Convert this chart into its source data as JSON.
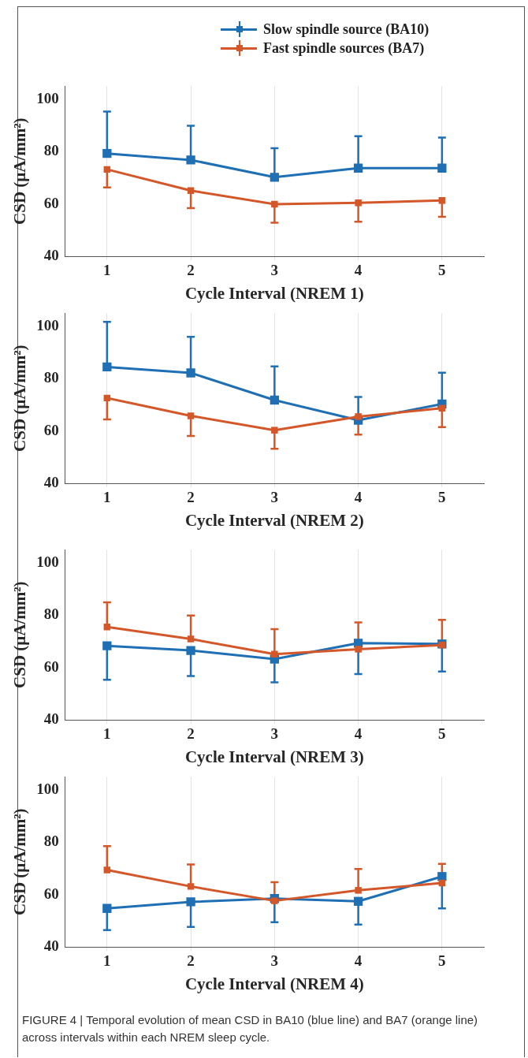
{
  "chart_data": [
    {
      "type": "line",
      "x": [
        1,
        2,
        3,
        4,
        5
      ],
      "xlim": [
        0.5,
        5.5
      ],
      "xticks": [
        1,
        2,
        3,
        4,
        5
      ],
      "ylim": [
        40,
        105
      ],
      "yticks": [
        40,
        60,
        80,
        100
      ],
      "xlabel": "Cycle Interval (NREM 1)",
      "ylabel": "CSD (μA/mm²)",
      "grid": "x",
      "marker": "square",
      "line_style": "solid",
      "legend": "top right",
      "series": [
        {
          "name": "Slow spindle source (BA10)",
          "color": "#1f6fb4",
          "values": [
            79.3,
            76.8,
            70.2,
            73.7,
            73.7
          ],
          "errors": [
            [
              79.3,
              95.3
            ],
            [
              76.8,
              89.9
            ],
            [
              70.2,
              81.3
            ],
            [
              73.7,
              85.9
            ],
            [
              73.7,
              85.4
            ]
          ]
        },
        {
          "name": "Fast spindle sources (BA7)",
          "color": "#d4572a",
          "values": [
            73.2,
            65.1,
            59.9,
            60.4,
            61.3
          ],
          "errors": [
            [
              66.3,
              73.2
            ],
            [
              58.4,
              65.1
            ],
            [
              52.8,
              59.9
            ],
            [
              53.2,
              60.4
            ],
            [
              55.1,
              61.3
            ]
          ]
        }
      ]
    },
    {
      "type": "line",
      "x": [
        1,
        2,
        3,
        4,
        5
      ],
      "xlim": [
        0.5,
        5.5
      ],
      "xticks": [
        1,
        2,
        3,
        4,
        5
      ],
      "ylim": [
        40,
        105
      ],
      "yticks": [
        40,
        60,
        80,
        100
      ],
      "xlabel": "Cycle Interval (NREM 2)",
      "ylabel": "CSD (μA/mm²)",
      "grid": "x",
      "marker": "square",
      "line_style": "solid",
      "series": [
        {
          "color": "#1f6fb4",
          "values": [
            84.5,
            82.2,
            71.8,
            64.1,
            70.3
          ],
          "errors": [
            [
              84.5,
              101.7
            ],
            [
              82.2,
              96.0
            ],
            [
              71.8,
              84.7
            ],
            [
              64.1,
              73.0
            ],
            [
              70.3,
              82.3
            ]
          ]
        },
        {
          "color": "#d4572a",
          "values": [
            72.6,
            65.8,
            60.3,
            65.5,
            68.7
          ],
          "errors": [
            [
              64.4,
              72.6
            ],
            [
              58.1,
              65.8
            ],
            [
              53.2,
              60.3
            ],
            [
              58.6,
              65.5
            ],
            [
              61.5,
              68.7
            ]
          ]
        }
      ]
    },
    {
      "type": "line",
      "x": [
        1,
        2,
        3,
        4,
        5
      ],
      "xlim": [
        0.5,
        5.5
      ],
      "xticks": [
        1,
        2,
        3,
        4,
        5
      ],
      "ylim": [
        40,
        105
      ],
      "yticks": [
        40,
        60,
        80,
        100
      ],
      "xlabel": "Cycle Interval (NREM 3)",
      "ylabel": "CSD (μA/mm²)",
      "grid": "x",
      "marker": "square",
      "line_style": "solid",
      "series": [
        {
          "color": "#1f6fb4",
          "values": [
            68.3,
            66.5,
            63.2,
            69.3,
            69.0
          ],
          "errors": [
            [
              55.3,
              68.3
            ],
            [
              56.7,
              66.5
            ],
            [
              54.3,
              63.2
            ],
            [
              57.5,
              69.3
            ],
            [
              58.5,
              69.0
            ]
          ]
        },
        {
          "color": "#d4572a",
          "values": [
            75.5,
            70.9,
            65.1,
            67.0,
            68.6
          ],
          "errors": [
            [
              75.5,
              84.9
            ],
            [
              70.9,
              79.9
            ],
            [
              65.1,
              74.7
            ],
            [
              67.0,
              77.2
            ],
            [
              68.6,
              78.2
            ]
          ]
        }
      ]
    },
    {
      "type": "line",
      "x": [
        1,
        2,
        3,
        4,
        5
      ],
      "xlim": [
        0.5,
        5.5
      ],
      "xticks": [
        1,
        2,
        3,
        4,
        5
      ],
      "ylim": [
        40,
        105
      ],
      "yticks": [
        40,
        60,
        80,
        100
      ],
      "xlabel": "Cycle Interval (NREM 4)",
      "ylabel": "CSD (μA/mm²)",
      "grid": "x",
      "marker": "square",
      "line_style": "solid",
      "annotations": [
        "FIGURE 4 | Temporal evolution of mean CSD in BA10 (blue line) and BA7 (orange line) across intervals within each NREM sleep cycle."
      ],
      "series": [
        {
          "color": "#1f6fb4",
          "values": [
            54.7,
            57.2,
            58.5,
            57.4,
            66.9
          ],
          "errors": [
            [
              46.4,
              54.7
            ],
            [
              47.6,
              57.2
            ],
            [
              49.4,
              58.5
            ],
            [
              48.5,
              57.4
            ],
            [
              54.7,
              66.9
            ]
          ]
        },
        {
          "color": "#d4572a",
          "values": [
            69.4,
            63.1,
            57.6,
            61.6,
            64.4
          ],
          "errors": [
            [
              69.4,
              78.5
            ],
            [
              63.1,
              71.5
            ],
            [
              57.6,
              64.7
            ],
            [
              61.6,
              69.8
            ],
            [
              64.4,
              71.7
            ]
          ]
        }
      ]
    }
  ]
}
